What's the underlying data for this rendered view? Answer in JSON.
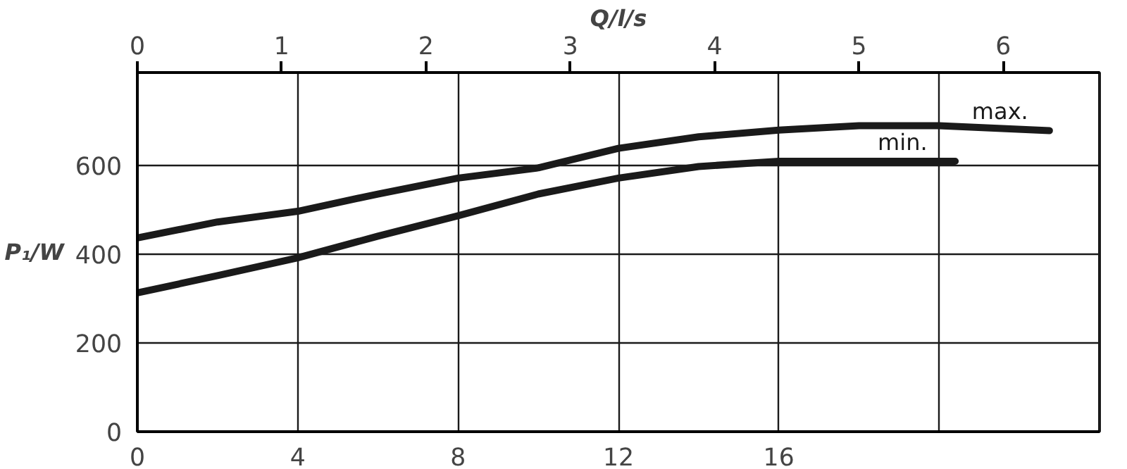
{
  "chart_data": {
    "type": "line",
    "ylabel": "P₁/W",
    "x2label": "Q/l/s",
    "xlim": [
      0,
      24
    ],
    "xticks": [
      0,
      4,
      8,
      12,
      16,
      {
        "value": 20,
        "label": null
      }
    ],
    "x2lim": [
      0,
      6.667
    ],
    "x2ticks": [
      0,
      1,
      2,
      3,
      4,
      5,
      6
    ],
    "ylim": [
      0,
      810
    ],
    "yticks": [
      0,
      200,
      400,
      600
    ],
    "grid": true,
    "marker": "none",
    "line_style": "solid",
    "series": [
      {
        "name": "max.",
        "color": "#1a1a1a",
        "x": [
          0,
          2,
          4,
          6,
          8,
          10,
          12,
          14,
          16,
          18,
          20,
          22.75
        ],
        "values": [
          437,
          473,
          497,
          536,
          572,
          595,
          639,
          665,
          680,
          690,
          690,
          679
        ]
      },
      {
        "name": "min.",
        "color": "#1a1a1a",
        "x": [
          0,
          2,
          4,
          6,
          8,
          10,
          12,
          14,
          16,
          18,
          20.4
        ],
        "values": [
          313,
          352,
          392,
          441,
          487,
          536,
          572,
          598,
          610,
          610,
          610
        ]
      }
    ]
  }
}
